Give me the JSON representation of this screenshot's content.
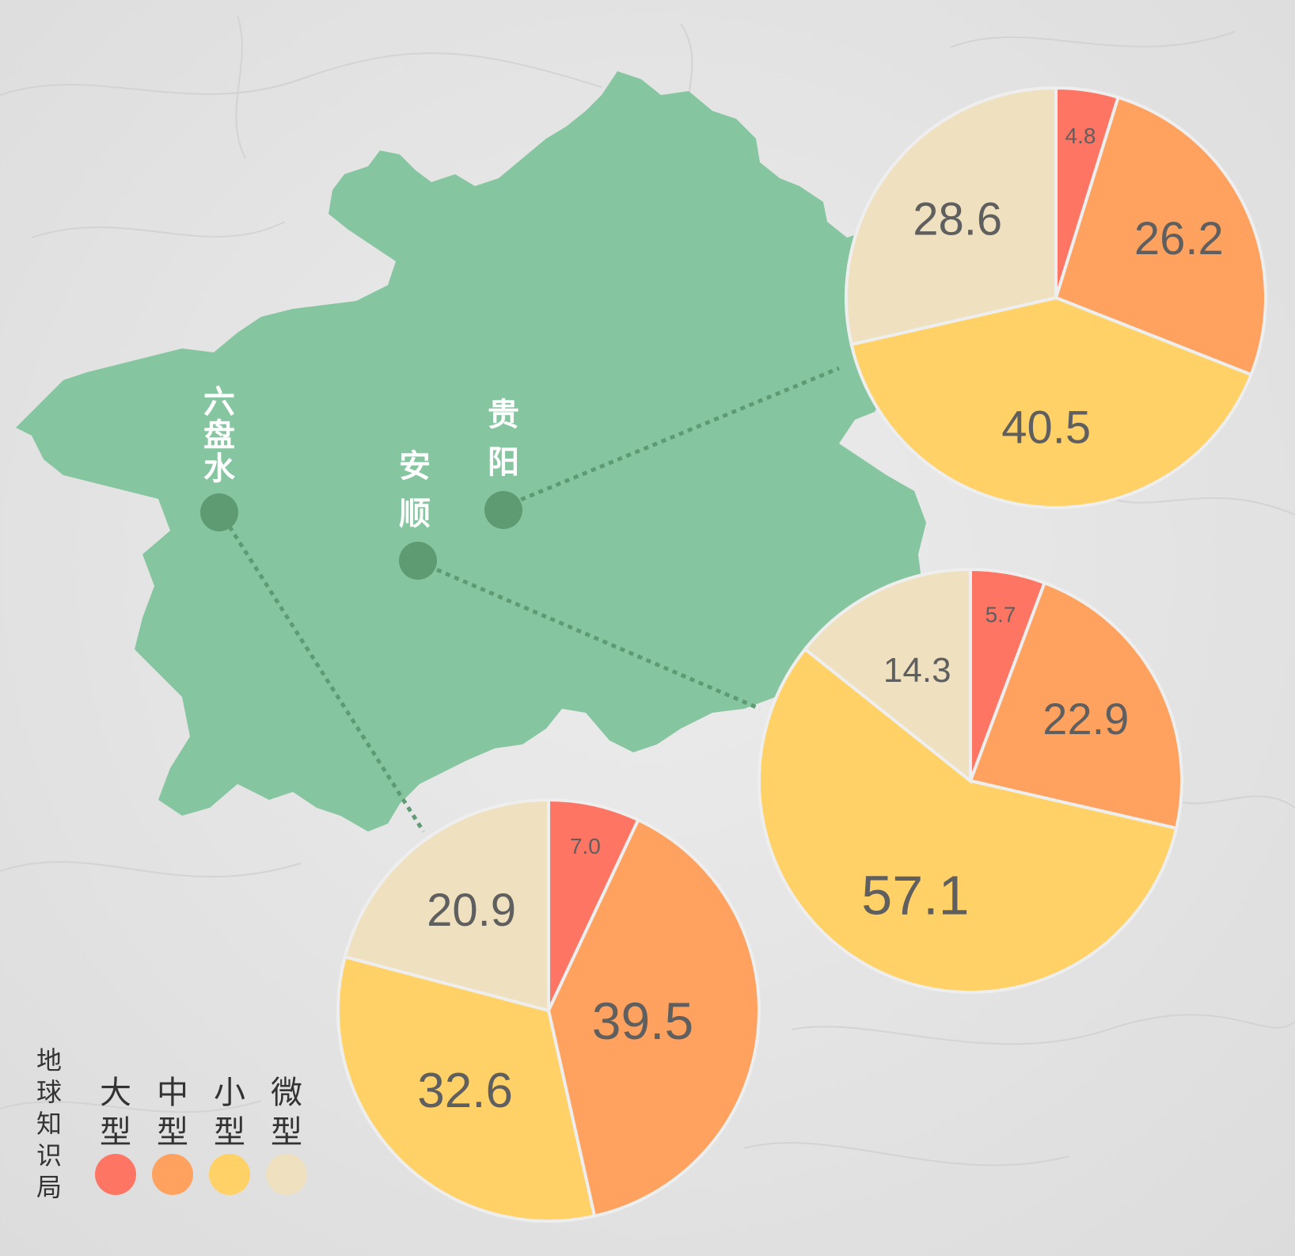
{
  "cities": [
    {
      "name": "贵阳",
      "char1": "贵",
      "char2": "阳"
    },
    {
      "name": "安顺",
      "char1": "安",
      "char2": "顺"
    },
    {
      "name": "六盘水",
      "char1": "六",
      "char2": "盘",
      "char3": "水"
    }
  ],
  "colors": {
    "land": "#85c6a0",
    "marker": "#5e9a72",
    "connector": "#5e9a72",
    "background": "#e5e5e5"
  },
  "legend": {
    "source": {
      "c1": "地",
      "c2": "球",
      "c3": "知",
      "c4": "识",
      "c5": "局"
    },
    "items": [
      {
        "label": "大型",
        "c1": "大",
        "c2": "型",
        "color": "#ff7563"
      },
      {
        "label": "中型",
        "c1": "中",
        "c2": "型",
        "color": "#ffa25f"
      },
      {
        "label": "小型",
        "c1": "小",
        "c2": "型",
        "color": "#ffd166"
      },
      {
        "label": "微型",
        "c1": "微",
        "c2": "型",
        "color": "#efe1bf"
      }
    ]
  },
  "chart_data": [
    {
      "type": "pie",
      "city": "贵阳",
      "categories": [
        "大型",
        "中型",
        "小型",
        "微型"
      ],
      "values": [
        4.8,
        26.2,
        40.5,
        28.6
      ],
      "labels": [
        "4.8",
        "26.2",
        "40.5",
        "28.6"
      ]
    },
    {
      "type": "pie",
      "city": "安顺",
      "categories": [
        "大型",
        "中型",
        "小型",
        "微型"
      ],
      "values": [
        5.7,
        22.9,
        57.1,
        14.3
      ],
      "labels": [
        "5.7",
        "22.9",
        "57.1",
        "14.3"
      ]
    },
    {
      "type": "pie",
      "city": "六盘水",
      "categories": [
        "大型",
        "中型",
        "小型",
        "微型"
      ],
      "values": [
        7.0,
        39.5,
        32.6,
        20.9
      ],
      "labels": [
        "7.0",
        "39.5",
        "32.6",
        "20.9"
      ]
    }
  ]
}
